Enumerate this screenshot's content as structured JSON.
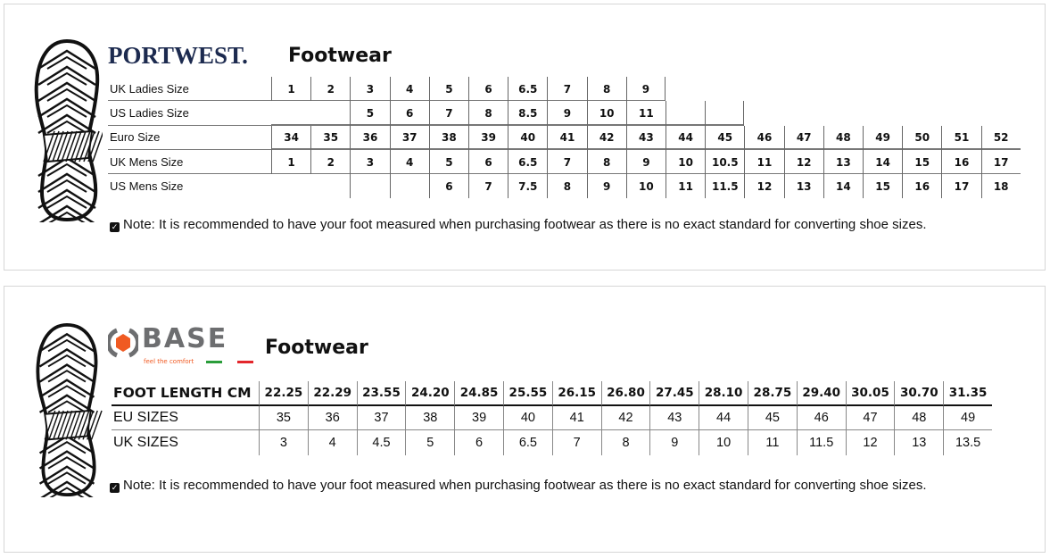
{
  "portwest": {
    "brand": "PORTWEST.",
    "title": "Footwear",
    "rows": [
      {
        "label": "UK Ladies Size",
        "values": [
          "1",
          "2",
          "3",
          "4",
          "5",
          "6",
          "6.5",
          "7",
          "8",
          "9"
        ]
      },
      {
        "label": "US Ladies Size",
        "values": [
          "",
          "",
          "5",
          "6",
          "7",
          "8",
          "8.5",
          "9",
          "10",
          "11",
          "",
          ""
        ]
      },
      {
        "label": "Euro Size",
        "values": [
          "34",
          "35",
          "36",
          "37",
          "38",
          "39",
          "40",
          "41",
          "42",
          "43",
          "44",
          "45",
          "46",
          "47",
          "48",
          "49",
          "50",
          "51",
          "52"
        ]
      },
      {
        "label": "UK Mens Size",
        "values": [
          "1",
          "2",
          "3",
          "4",
          "5",
          "6",
          "6.5",
          "7",
          "8",
          "9",
          "10",
          "10.5",
          "11",
          "12",
          "13",
          "14",
          "15",
          "16",
          "17"
        ]
      },
      {
        "label": "US Mens Size",
        "values": [
          "",
          "",
          "",
          "",
          "6",
          "7",
          "7.5",
          "8",
          "9",
          "10",
          "11",
          "11.5",
          "12",
          "13",
          "14",
          "15",
          "16",
          "17",
          "18"
        ]
      }
    ],
    "note": "Note: It is recommended to have your foot measured when purchasing footwear as there is no exact standard for converting shoe sizes."
  },
  "base": {
    "brand": "BASE",
    "tagline": "feel the comfort",
    "title": "Footwear",
    "header": {
      "label": "FOOT LENGTH CM",
      "values": [
        "22.25",
        "22.29",
        "23.55",
        "24.20",
        "24.85",
        "25.55",
        "26.15",
        "26.80",
        "27.45",
        "28.10",
        "28.75",
        "29.40",
        "30.05",
        "30.70",
        "31.35"
      ]
    },
    "rows": [
      {
        "label": "EU SIZES",
        "values": [
          "35",
          "36",
          "37",
          "38",
          "39",
          "40",
          "41",
          "42",
          "43",
          "44",
          "45",
          "46",
          "47",
          "48",
          "49"
        ]
      },
      {
        "label": "UK SIZES",
        "values": [
          "3",
          "4",
          "4.5",
          "5",
          "6",
          "6.5",
          "7",
          "8",
          "9",
          "10",
          "11",
          "11.5",
          "12",
          "13",
          "13.5"
        ]
      }
    ],
    "note": "Note: It is recommended to have your foot measured when purchasing footwear as there is no exact standard for converting shoe sizes."
  },
  "colors": {
    "portwest_navy": "#1c2a4f",
    "base_orange": "#f05a22",
    "base_grey": "#6d6e70",
    "italy_green": "#2a9d3a",
    "italy_red": "#e3262b"
  },
  "icons": {
    "sole": "shoe-sole-icon",
    "note": "checkbox-note-icon"
  }
}
